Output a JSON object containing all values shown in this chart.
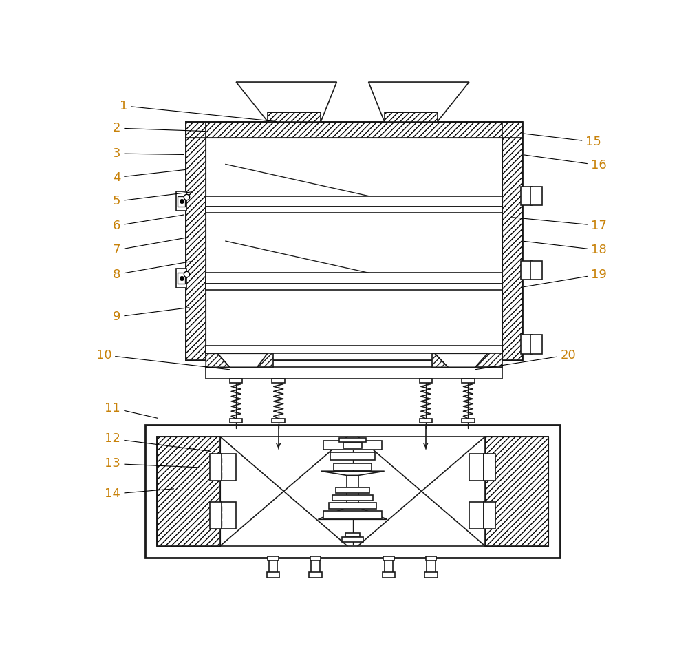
{
  "bg_color": "#ffffff",
  "line_color": "#1a1a1a",
  "label_color": "#c8820a",
  "label_fontsize": 13,
  "fig_width": 10.0,
  "fig_height": 9.6
}
